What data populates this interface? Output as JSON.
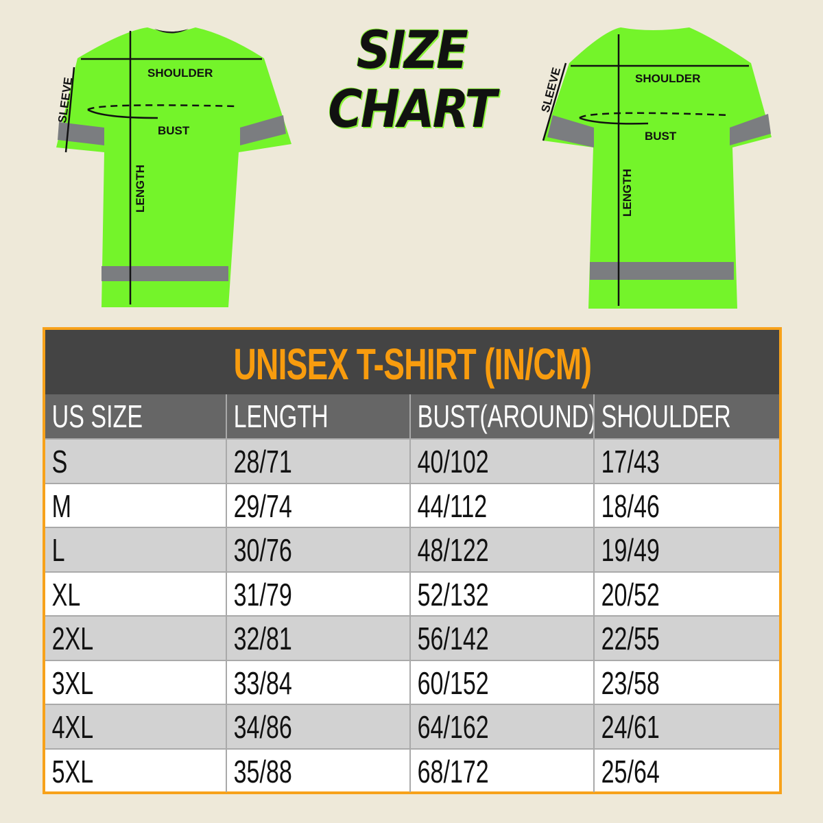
{
  "heading": {
    "line1": "SIZE",
    "line2": "CHART"
  },
  "front_shirt": {
    "labels": {
      "shoulder": "SHOULDER",
      "bust": "BUST",
      "sleeve": "SLEEVE",
      "length": "LENGTH"
    }
  },
  "back_shirt": {
    "labels": {
      "shoulder": "SHOULDER",
      "bust": "BUST",
      "sleeve": "SLEEVE",
      "length": "LENGTH"
    }
  },
  "colors": {
    "shirt": "#74f42a",
    "stripe": "#7b7d80",
    "accent": "#f89c0e",
    "background": "#eee9d9"
  },
  "table": {
    "title": "UNISEX T-SHIRT (IN/CM)",
    "headers": [
      "US SIZE",
      "LENGTH",
      "BUST(AROUND)",
      "SHOULDER"
    ],
    "rows": [
      [
        "S",
        "28/71",
        "40/102",
        "17/43"
      ],
      [
        "M",
        "29/74",
        "44/112",
        "18/46"
      ],
      [
        "L",
        "30/76",
        "48/122",
        "19/49"
      ],
      [
        "XL",
        "31/79",
        "52/132",
        "20/52"
      ],
      [
        "2XL",
        "32/81",
        "56/142",
        "22/55"
      ],
      [
        "3XL",
        "33/84",
        "60/152",
        "23/58"
      ],
      [
        "4XL",
        "34/86",
        "64/162",
        "24/61"
      ],
      [
        "5XL",
        "35/88",
        "68/172",
        "25/64"
      ]
    ]
  }
}
